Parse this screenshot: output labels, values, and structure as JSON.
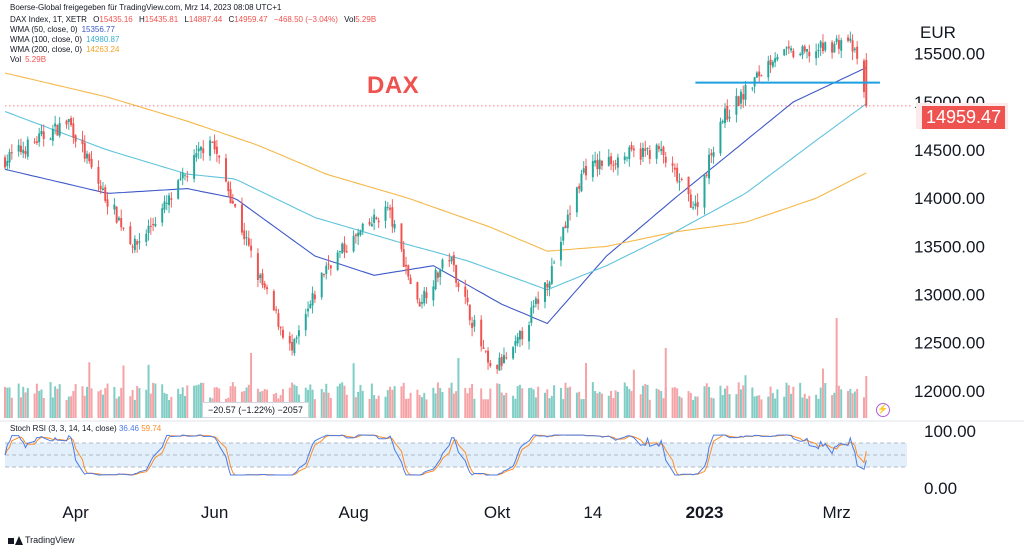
{
  "source_line": "Boerse-Global freigegeben für TradingView.com, Mrz 14, 2023 08:08 UTC+1",
  "symbol_line": {
    "name": "DAX Index, 1T, XETR",
    "o_label": "O",
    "o": "15435.16",
    "h_label": "H",
    "h": "15435.81",
    "l_label": "L",
    "l": "14887.44",
    "c_label": "C",
    "c": "14959.47",
    "change": "−468.50 (−3.04%)",
    "vol_label": "Vol",
    "vol": "5.29B"
  },
  "indicators": [
    {
      "label": "WMA (50, close, 0)",
      "value": "15356.77",
      "color": "#3f5ac8"
    },
    {
      "label": "WMA (100, close, 0)",
      "value": "14980.87",
      "color": "#5fc4dd"
    },
    {
      "label": "WMA (200, close, 0)",
      "value": "14263.24",
      "color": "#f5b84a"
    },
    {
      "label": "Vol",
      "value": "5.29B",
      "color": "#ef5350"
    }
  ],
  "chart_title": "DAX",
  "currency": "EUR",
  "current_price": "14959.47",
  "change_box": "−20.57 (−1.22%) −2057",
  "rsi": {
    "label": "Stoch RSI (3, 3, 14, 14, close)",
    "k": "36.46",
    "d": "59.74",
    "k_color": "#4b7be5",
    "d_color": "#ff8c26",
    "band_color": "#e3f0fb"
  },
  "footer": "TradingView",
  "colors": {
    "up": "#26a69a",
    "down": "#ef5350",
    "vol_up": "#7fcdc4",
    "vol_down": "#f5a3a6",
    "hline": "#1e9fe0"
  },
  "chart_data": {
    "type": "candlestick",
    "title": "DAX",
    "y_unit": "EUR",
    "ylim": [
      11750,
      15850
    ],
    "y_ticks": [
      12000,
      12500,
      13000,
      13500,
      14000,
      14500,
      15000,
      15500
    ],
    "y_tick_labels": [
      "12000.00",
      "12500.00",
      "13000.00",
      "13500.00",
      "14000.00",
      "14500.00",
      "15000.00",
      "15500.00"
    ],
    "x_ticks": [
      {
        "label": "Apr",
        "date": "2022-04-01",
        "bold": false
      },
      {
        "label": "Jun",
        "date": "2022-06-01",
        "bold": false
      },
      {
        "label": "Aug",
        "date": "2022-08-01",
        "bold": false
      },
      {
        "label": "Okt",
        "date": "2022-10-03",
        "bold": false
      },
      {
        "label": "14",
        "date": "2022-11-14",
        "bold": false
      },
      {
        "label": "2023",
        "date": "2023-01-02",
        "bold": true
      },
      {
        "label": "Mrz",
        "date": "2023-03-01",
        "bold": false
      }
    ],
    "x_range": [
      "2022-03-01",
      "2023-03-31"
    ],
    "price_anchors": [
      [
        "2022-03-01",
        14400
      ],
      [
        "2022-03-29",
        14800
      ],
      [
        "2022-04-12",
        14100
      ],
      [
        "2022-04-27",
        13500
      ],
      [
        "2022-05-13",
        14000
      ],
      [
        "2022-05-30",
        14650
      ],
      [
        "2022-06-20",
        13200
      ],
      [
        "2022-07-05",
        12400
      ],
      [
        "2022-07-20",
        13300
      ],
      [
        "2022-08-16",
        13900
      ],
      [
        "2022-08-29",
        12900
      ],
      [
        "2022-09-12",
        13400
      ],
      [
        "2022-09-30",
        12200
      ],
      [
        "2022-10-10",
        12400
      ],
      [
        "2022-10-26",
        13200
      ],
      [
        "2022-11-10",
        14300
      ],
      [
        "2022-11-30",
        14450
      ],
      [
        "2022-12-13",
        14500
      ],
      [
        "2022-12-29",
        13900
      ],
      [
        "2023-01-09",
        14800
      ],
      [
        "2023-01-20",
        15100
      ],
      [
        "2023-02-02",
        15500
      ],
      [
        "2023-02-16",
        15500
      ],
      [
        "2023-03-06",
        15650
      ],
      [
        "2023-03-10",
        15430
      ],
      [
        "2023-03-14",
        14959
      ]
    ],
    "wma": [
      {
        "name": "WMA 50",
        "color": "#3f5ac8",
        "points": [
          [
            "2022-03-01",
            14300
          ],
          [
            "2022-04-15",
            14050
          ],
          [
            "2022-05-20",
            14100
          ],
          [
            "2022-06-10",
            14000
          ],
          [
            "2022-07-15",
            13400
          ],
          [
            "2022-08-10",
            13200
          ],
          [
            "2022-09-05",
            13300
          ],
          [
            "2022-10-05",
            12900
          ],
          [
            "2022-10-25",
            12700
          ],
          [
            "2022-11-20",
            13400
          ],
          [
            "2022-12-20",
            14000
          ],
          [
            "2023-01-15",
            14500
          ],
          [
            "2023-02-10",
            15000
          ],
          [
            "2023-03-14",
            15356
          ]
        ]
      },
      {
        "name": "WMA 100",
        "color": "#5fc4dd",
        "points": [
          [
            "2022-03-01",
            14900
          ],
          [
            "2022-04-15",
            14500
          ],
          [
            "2022-05-20",
            14250
          ],
          [
            "2022-06-10",
            14200
          ],
          [
            "2022-07-15",
            13800
          ],
          [
            "2022-08-20",
            13550
          ],
          [
            "2022-09-20",
            13350
          ],
          [
            "2022-10-25",
            13050
          ],
          [
            "2022-11-20",
            13300
          ],
          [
            "2022-12-20",
            13650
          ],
          [
            "2023-01-20",
            14050
          ],
          [
            "2023-02-20",
            14600
          ],
          [
            "2023-03-14",
            14981
          ]
        ]
      },
      {
        "name": "WMA 200",
        "color": "#f5b84a",
        "points": [
          [
            "2022-03-01",
            15300
          ],
          [
            "2022-04-15",
            15050
          ],
          [
            "2022-05-20",
            14800
          ],
          [
            "2022-06-20",
            14550
          ],
          [
            "2022-07-20",
            14250
          ],
          [
            "2022-08-25",
            14000
          ],
          [
            "2022-09-30",
            13700
          ],
          [
            "2022-10-25",
            13450
          ],
          [
            "2022-11-20",
            13500
          ],
          [
            "2022-12-20",
            13650
          ],
          [
            "2023-01-20",
            13750
          ],
          [
            "2023-02-20",
            14000
          ],
          [
            "2023-03-14",
            14263
          ]
        ]
      }
    ],
    "horizontal_line": {
      "value": 15200,
      "from": "2022-12-29",
      "to": "2023-03-20",
      "color": "#1e9fe0"
    },
    "dotted_line": {
      "value": 14959,
      "color": "#ef5350"
    },
    "rsi_ticks": [
      {
        "value": 100,
        "label": "100.00"
      },
      {
        "value": 0,
        "label": "0.00"
      }
    ],
    "rsi_band": [
      20,
      80
    ]
  }
}
